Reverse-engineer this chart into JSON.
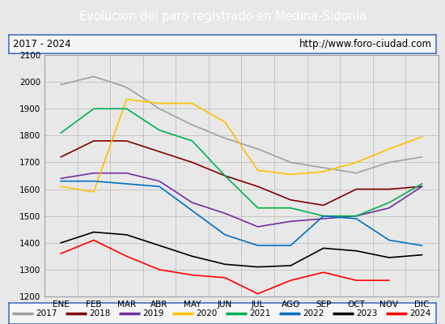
{
  "title": "Evolucion del paro registrado en Medina-Sidonia",
  "title_color": "#ffffff",
  "title_bg_color": "#4472c4",
  "subtitle_left": "2017 - 2024",
  "subtitle_right": "http://www.foro-ciudad.com",
  "xlabel_months": [
    "ENE",
    "FEB",
    "MAR",
    "ABR",
    "MAY",
    "JUN",
    "JUL",
    "AGO",
    "SEP",
    "OCT",
    "NOV",
    "DIC"
  ],
  "ylim": [
    1200,
    2100
  ],
  "yticks": [
    1200,
    1300,
    1400,
    1500,
    1600,
    1700,
    1800,
    1900,
    2000,
    2100
  ],
  "bg_color": "#e8e8e8",
  "plot_bg_color": "#e8e8e8",
  "series": {
    "2017": {
      "color": "#a0a0a0",
      "data": [
        1990,
        2020,
        1980,
        1900,
        1840,
        1790,
        1750,
        1700,
        1680,
        1660,
        1700,
        1720
      ]
    },
    "2018": {
      "color": "#800000",
      "data": [
        1720,
        1780,
        1780,
        1740,
        1700,
        1650,
        1610,
        1560,
        1540,
        1600,
        1600,
        1610
      ]
    },
    "2019": {
      "color": "#7030a0",
      "data": [
        1640,
        1660,
        1660,
        1630,
        1550,
        1510,
        1460,
        1480,
        1490,
        1500,
        1530,
        1610
      ]
    },
    "2020": {
      "color": "#ffc000",
      "data": [
        1610,
        1590,
        1935,
        1920,
        1920,
        1850,
        1670,
        1655,
        1665,
        1700,
        1750,
        1795
      ]
    },
    "2021": {
      "color": "#00b050",
      "data": [
        1810,
        1900,
        1900,
        1820,
        1780,
        1650,
        1530,
        1530,
        1500,
        1500,
        1550,
        1620
      ]
    },
    "2022": {
      "color": "#0070c0",
      "data": [
        1630,
        1630,
        1620,
        1610,
        1520,
        1430,
        1390,
        1390,
        1500,
        1490,
        1410,
        1390
      ]
    },
    "2023": {
      "color": "#000000",
      "data": [
        1400,
        1440,
        1430,
        1390,
        1350,
        1320,
        1310,
        1315,
        1380,
        1370,
        1345,
        1355
      ]
    },
    "2024": {
      "color": "#ff0000",
      "data": [
        1360,
        1410,
        1350,
        1300,
        1280,
        1270,
        1210,
        1260,
        1290,
        1260,
        1260,
        null
      ]
    }
  },
  "legend_order": [
    "2017",
    "2018",
    "2019",
    "2020",
    "2021",
    "2022",
    "2023",
    "2024"
  ]
}
